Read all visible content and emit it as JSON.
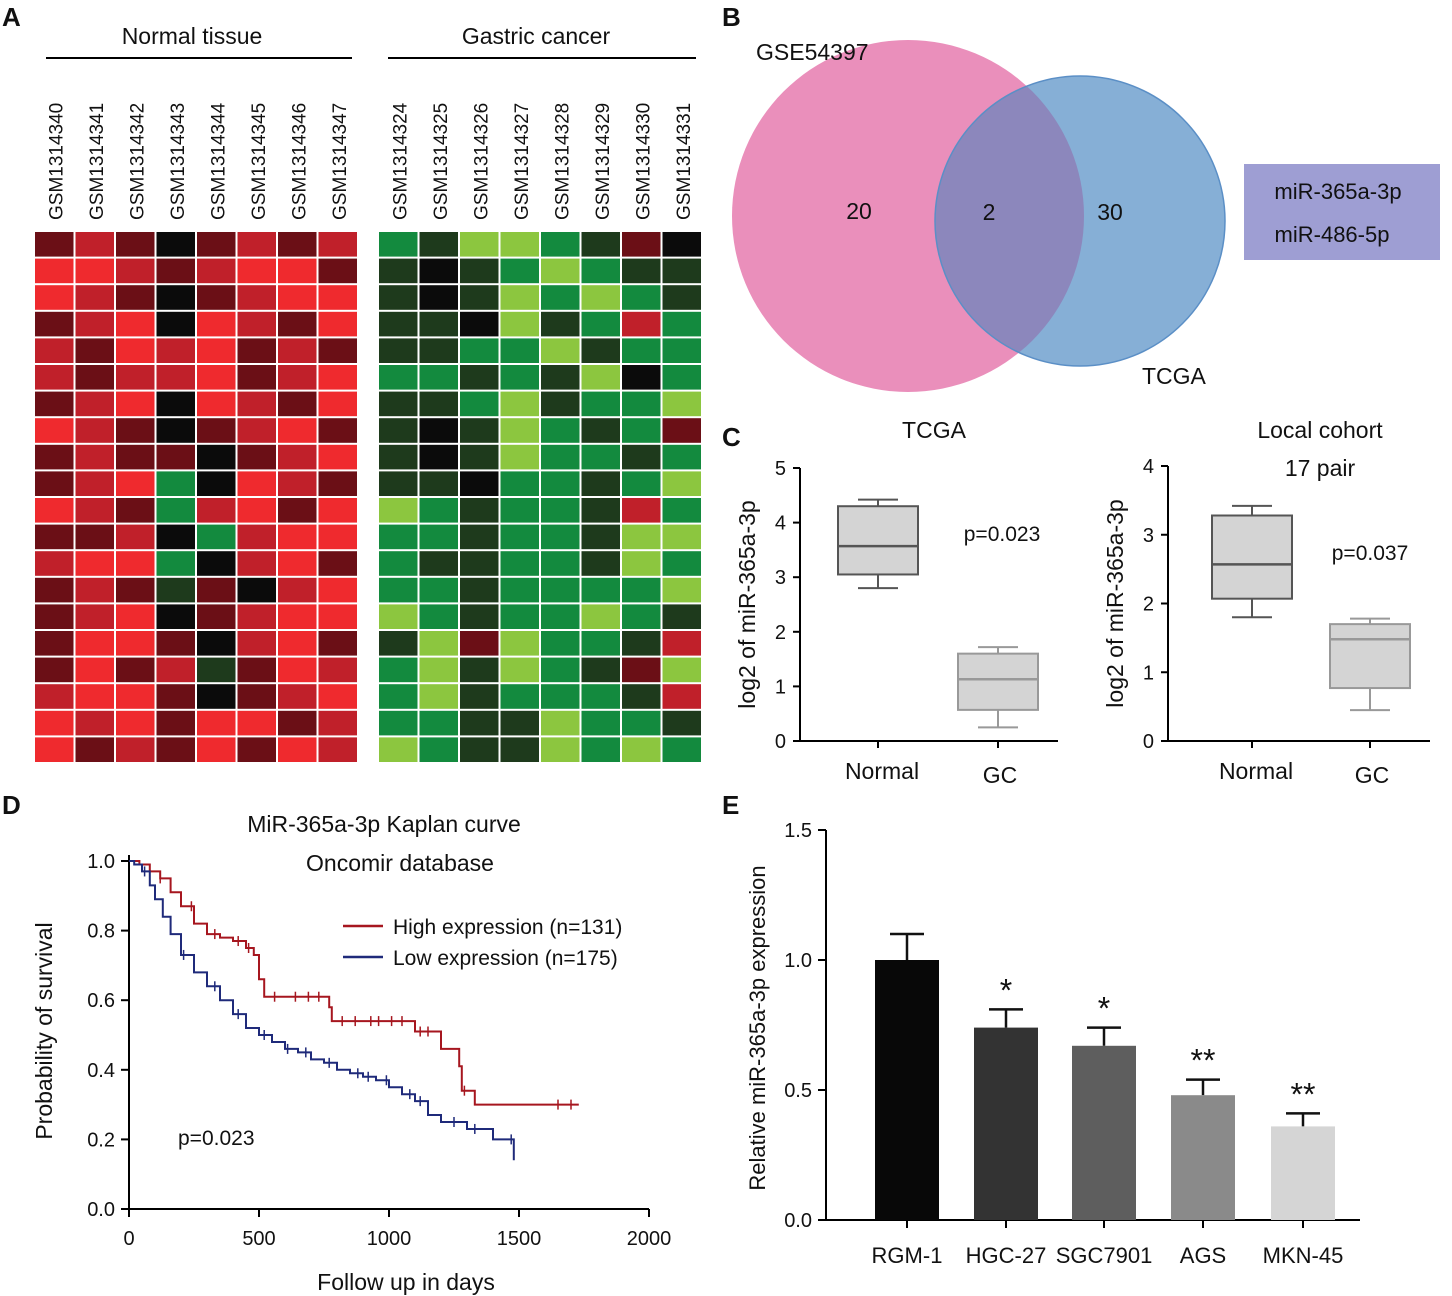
{
  "panels": {
    "A": "A",
    "B": "B",
    "C": "C",
    "D": "D",
    "E": "E"
  },
  "colors": {
    "heat": {
      "dred": "#6b0f16",
      "mred": "#c0202a",
      "bred": "#ef2a2e",
      "blk": "#0b0b0b",
      "dgrn": "#1e3a1c",
      "mgrn": "#138a3e",
      "lgrn": "#8cc63f"
    },
    "venn_left": "#ea8fbb",
    "venn_right": "#86afd6",
    "venn_overlap": "#8c87bc",
    "venn_box": "#9e9ed3",
    "km_high": "#a6161f",
    "km_low": "#1f2a7a",
    "box_fill": "#d4d4d4"
  },
  "chart_data": [
    {
      "panel": "A",
      "type": "heatmap",
      "groups": [
        "Normal tissue",
        "Gastric cancer"
      ],
      "normal_samples": [
        "GSM1314340",
        "GSM1314341",
        "GSM1314342",
        "GSM1314343",
        "GSM1314344",
        "GSM1314345",
        "GSM1314346",
        "GSM1314347"
      ],
      "cancer_samples": [
        "GSM1314324",
        "GSM1314325",
        "GSM1314326",
        "GSM1314327",
        "GSM1314328",
        "GSM1314329",
        "GSM1314330",
        "GSM1314331"
      ],
      "normal_matrix": [
        [
          "dred",
          "mred",
          "dred",
          "blk",
          "dred",
          "mred",
          "dred",
          "mred"
        ],
        [
          "bred",
          "bred",
          "mred",
          "dred",
          "mred",
          "bred",
          "bred",
          "dred"
        ],
        [
          "bred",
          "mred",
          "dred",
          "blk",
          "dred",
          "mred",
          "bred",
          "bred"
        ],
        [
          "dred",
          "mred",
          "bred",
          "blk",
          "bred",
          "mred",
          "dred",
          "bred"
        ],
        [
          "mred",
          "dred",
          "bred",
          "mred",
          "bred",
          "dred",
          "mred",
          "dred"
        ],
        [
          "mred",
          "dred",
          "mred",
          "mred",
          "bred",
          "dred",
          "mred",
          "bred"
        ],
        [
          "dred",
          "mred",
          "bred",
          "blk",
          "bred",
          "mred",
          "dred",
          "bred"
        ],
        [
          "bred",
          "mred",
          "dred",
          "blk",
          "dred",
          "mred",
          "bred",
          "dred"
        ],
        [
          "dred",
          "mred",
          "dred",
          "dred",
          "blk",
          "dred",
          "mred",
          "bred"
        ],
        [
          "dred",
          "mred",
          "bred",
          "mgrn",
          "blk",
          "bred",
          "mred",
          "dred"
        ],
        [
          "bred",
          "mred",
          "dred",
          "mgrn",
          "mred",
          "bred",
          "dred",
          "bred"
        ],
        [
          "dred",
          "dred",
          "mred",
          "blk",
          "mgrn",
          "mred",
          "bred",
          "bred"
        ],
        [
          "mred",
          "bred",
          "bred",
          "mgrn",
          "blk",
          "mred",
          "bred",
          "dred"
        ],
        [
          "dred",
          "mred",
          "dred",
          "dgrn",
          "dred",
          "blk",
          "mred",
          "bred"
        ],
        [
          "dred",
          "mred",
          "bred",
          "blk",
          "dred",
          "mred",
          "bred",
          "bred"
        ],
        [
          "dred",
          "bred",
          "bred",
          "dred",
          "blk",
          "mred",
          "bred",
          "dred"
        ],
        [
          "dred",
          "bred",
          "dred",
          "mred",
          "dgrn",
          "dred",
          "bred",
          "mred"
        ],
        [
          "mred",
          "bred",
          "bred",
          "dred",
          "blk",
          "dred",
          "mred",
          "bred"
        ],
        [
          "bred",
          "mred",
          "bred",
          "dred",
          "bred",
          "bred",
          "dred",
          "mred"
        ],
        [
          "bred",
          "dred",
          "mred",
          "dred",
          "bred",
          "dred",
          "bred",
          "mred"
        ]
      ],
      "cancer_matrix": [
        [
          "mgrn",
          "dgrn",
          "lgrn",
          "lgrn",
          "mgrn",
          "dgrn",
          "dred",
          "blk"
        ],
        [
          "dgrn",
          "blk",
          "dgrn",
          "mgrn",
          "lgrn",
          "mgrn",
          "dgrn",
          "dgrn"
        ],
        [
          "dgrn",
          "blk",
          "dgrn",
          "lgrn",
          "mgrn",
          "lgrn",
          "mgrn",
          "dgrn"
        ],
        [
          "dgrn",
          "dgrn",
          "blk",
          "lgrn",
          "dgrn",
          "mgrn",
          "mred",
          "mgrn"
        ],
        [
          "dgrn",
          "dgrn",
          "mgrn",
          "mgrn",
          "lgrn",
          "dgrn",
          "mgrn",
          "mgrn"
        ],
        [
          "mgrn",
          "mgrn",
          "dgrn",
          "mgrn",
          "dgrn",
          "lgrn",
          "blk",
          "mgrn"
        ],
        [
          "dgrn",
          "dgrn",
          "mgrn",
          "lgrn",
          "dgrn",
          "mgrn",
          "mgrn",
          "lgrn"
        ],
        [
          "dgrn",
          "blk",
          "dgrn",
          "lgrn",
          "mgrn",
          "dgrn",
          "mgrn",
          "dred"
        ],
        [
          "dgrn",
          "blk",
          "dgrn",
          "lgrn",
          "mgrn",
          "mgrn",
          "dgrn",
          "mgrn"
        ],
        [
          "dgrn",
          "dgrn",
          "blk",
          "mgrn",
          "mgrn",
          "dgrn",
          "mgrn",
          "lgrn"
        ],
        [
          "lgrn",
          "mgrn",
          "dgrn",
          "mgrn",
          "mgrn",
          "dgrn",
          "mred",
          "mgrn"
        ],
        [
          "mgrn",
          "mgrn",
          "dgrn",
          "mgrn",
          "mgrn",
          "dgrn",
          "lgrn",
          "lgrn"
        ],
        [
          "mgrn",
          "dgrn",
          "dgrn",
          "mgrn",
          "mgrn",
          "dgrn",
          "lgrn",
          "mgrn"
        ],
        [
          "mgrn",
          "mgrn",
          "dgrn",
          "mgrn",
          "mgrn",
          "mgrn",
          "mgrn",
          "lgrn"
        ],
        [
          "lgrn",
          "mgrn",
          "dgrn",
          "mgrn",
          "mgrn",
          "lgrn",
          "mgrn",
          "dgrn"
        ],
        [
          "dgrn",
          "lgrn",
          "dred",
          "lgrn",
          "mgrn",
          "mgrn",
          "dgrn",
          "mred"
        ],
        [
          "mgrn",
          "lgrn",
          "dgrn",
          "lgrn",
          "mgrn",
          "dgrn",
          "dred",
          "lgrn"
        ],
        [
          "mgrn",
          "lgrn",
          "dgrn",
          "mgrn",
          "mgrn",
          "mgrn",
          "dgrn",
          "mred"
        ],
        [
          "mgrn",
          "mgrn",
          "dgrn",
          "dgrn",
          "lgrn",
          "mgrn",
          "mgrn",
          "dgrn"
        ],
        [
          "lgrn",
          "mgrn",
          "dgrn",
          "dgrn",
          "lgrn",
          "mgrn",
          "lgrn",
          "mgrn"
        ]
      ]
    },
    {
      "panel": "B",
      "type": "venn",
      "sets": [
        {
          "name": "GSE54397",
          "only": "20"
        },
        {
          "name": "TCGA",
          "only": "30"
        }
      ],
      "overlap": "2",
      "overlap_items": [
        "miR-365a-3p",
        "miR-486-5p"
      ]
    },
    {
      "panel": "C",
      "type": "box",
      "charts": [
        {
          "title": "TCGA",
          "subtitle": "",
          "ylabel": "log2 of miR-365a-3p",
          "ylim": [
            0,
            5
          ],
          "yticks": [
            "0",
            "1",
            "2",
            "3",
            "4",
            "5"
          ],
          "categories": [
            "Normal",
            "GC"
          ],
          "boxes": [
            {
              "min": 2.8,
              "q1": 3.05,
              "median": 3.57,
              "q3": 4.3,
              "max": 4.42
            },
            {
              "min": 0.25,
              "q1": 0.57,
              "median": 1.13,
              "q3": 1.6,
              "max": 1.72
            }
          ],
          "pvalue": "p=0.023"
        },
        {
          "title": "Local cohort",
          "subtitle": "17 pair",
          "ylabel": "log2 of miR-365a-3p",
          "ylim": [
            0,
            4
          ],
          "yticks": [
            "0",
            "1",
            "2",
            "3",
            "4"
          ],
          "categories": [
            "Normal",
            "GC"
          ],
          "boxes": [
            {
              "min": 1.8,
              "q1": 2.07,
              "median": 2.57,
              "q3": 3.28,
              "max": 3.42
            },
            {
              "min": 0.45,
              "q1": 0.77,
              "median": 1.48,
              "q3": 1.7,
              "max": 1.78
            }
          ],
          "pvalue": "p=0.037"
        }
      ]
    },
    {
      "panel": "D",
      "type": "line",
      "title": "MiR-365a-3p Kaplan curve",
      "subtitle": "Oncomir database",
      "xlabel": "Follow up in days",
      "ylabel": "Probability of survival",
      "xlim": [
        0,
        2000
      ],
      "ylim": [
        0,
        1.0
      ],
      "xticks": [
        "0",
        "500",
        "1000",
        "1500",
        "2000"
      ],
      "yticks": [
        "0.0",
        "0.2",
        "0.4",
        "0.6",
        "0.8",
        "1.0"
      ],
      "pvalue": "p=0.023",
      "series": [
        {
          "name": "High expression (n=131)",
          "color_key": "km_high",
          "points": [
            [
              0,
              1.0
            ],
            [
              40,
              0.99
            ],
            [
              80,
              0.97
            ],
            [
              120,
              0.95
            ],
            [
              160,
              0.91
            ],
            [
              200,
              0.87
            ],
            [
              250,
              0.82
            ],
            [
              300,
              0.79
            ],
            [
              350,
              0.78
            ],
            [
              400,
              0.77
            ],
            [
              450,
              0.75
            ],
            [
              480,
              0.73
            ],
            [
              500,
              0.66
            ],
            [
              520,
              0.61
            ],
            [
              700,
              0.61
            ],
            [
              770,
              0.58
            ],
            [
              780,
              0.54
            ],
            [
              1000,
              0.54
            ],
            [
              1100,
              0.51
            ],
            [
              1200,
              0.46
            ],
            [
              1270,
              0.41
            ],
            [
              1280,
              0.34
            ],
            [
              1330,
              0.3
            ],
            [
              1730,
              0.3
            ]
          ],
          "censors": [
            120,
            240,
            330,
            420,
            460,
            560,
            640,
            690,
            730,
            820,
            870,
            930,
            960,
            1010,
            1050,
            1120,
            1150,
            1290,
            1650,
            1700
          ]
        },
        {
          "name": "Low expression (n=175)",
          "color_key": "km_low",
          "points": [
            [
              0,
              1.0
            ],
            [
              20,
              0.99
            ],
            [
              50,
              0.97
            ],
            [
              80,
              0.93
            ],
            [
              100,
              0.89
            ],
            [
              130,
              0.84
            ],
            [
              160,
              0.79
            ],
            [
              200,
              0.73
            ],
            [
              250,
              0.68
            ],
            [
              300,
              0.64
            ],
            [
              350,
              0.6
            ],
            [
              400,
              0.56
            ],
            [
              450,
              0.52
            ],
            [
              500,
              0.5
            ],
            [
              550,
              0.48
            ],
            [
              600,
              0.46
            ],
            [
              650,
              0.45
            ],
            [
              700,
              0.43
            ],
            [
              750,
              0.42
            ],
            [
              800,
              0.4
            ],
            [
              850,
              0.39
            ],
            [
              900,
              0.38
            ],
            [
              950,
              0.37
            ],
            [
              1000,
              0.35
            ],
            [
              1050,
              0.33
            ],
            [
              1100,
              0.31
            ],
            [
              1150,
              0.27
            ],
            [
              1200,
              0.25
            ],
            [
              1300,
              0.23
            ],
            [
              1400,
              0.2
            ],
            [
              1480,
              0.14
            ]
          ],
          "censors": [
            60,
            210,
            330,
            420,
            520,
            610,
            680,
            770,
            880,
            920,
            990,
            1080,
            1120,
            1250,
            1330,
            1470
          ]
        }
      ]
    },
    {
      "panel": "E",
      "type": "bar",
      "ylabel": "Relative miR-365a-3p expression",
      "ylim": [
        0,
        1.5
      ],
      "yticks": [
        "0.0",
        "0.5",
        "1.0",
        "1.5"
      ],
      "categories": [
        "RGM-1",
        "HGC-27",
        "SGC7901",
        "AGS",
        "MKN-45"
      ],
      "values": [
        1.0,
        0.74,
        0.67,
        0.48,
        0.36
      ],
      "errors": [
        0.1,
        0.07,
        0.07,
        0.06,
        0.05
      ],
      "significance": [
        "",
        "*",
        "*",
        "**",
        "**"
      ],
      "bar_colors": [
        "#080808",
        "#333333",
        "#5e5e5e",
        "#8a8a8a",
        "#d5d5d5"
      ]
    }
  ]
}
